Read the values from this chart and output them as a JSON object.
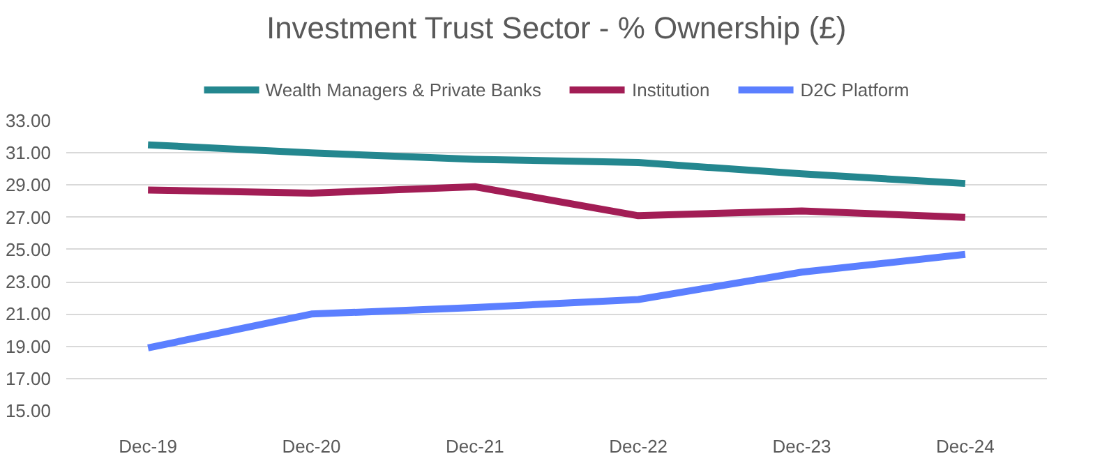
{
  "chart_data": {
    "type": "line",
    "title": "Investment Trust Sector - % Ownership (£)",
    "categories": [
      "Dec-19",
      "Dec-20",
      "Dec-21",
      "Dec-22",
      "Dec-23",
      "Dec-24"
    ],
    "series": [
      {
        "name": "Wealth Managers & Private Banks",
        "color": "#24878f",
        "values": [
          31.5,
          31.0,
          30.6,
          30.4,
          29.7,
          29.1
        ]
      },
      {
        "name": "Institution",
        "color": "#a21d55",
        "values": [
          28.7,
          28.5,
          28.9,
          27.1,
          27.4,
          27.0
        ]
      },
      {
        "name": "D2C Platform",
        "color": "#5b7fff",
        "values": [
          18.9,
          21.0,
          21.4,
          21.9,
          23.6,
          24.7
        ]
      }
    ],
    "ylim": [
      15,
      33
    ],
    "yticks": [
      {
        "value": 15,
        "label": "15.00"
      },
      {
        "value": 17,
        "label": "17.00"
      },
      {
        "value": 19,
        "label": "19.00"
      },
      {
        "value": 21,
        "label": "21.00"
      },
      {
        "value": 23,
        "label": "23.00"
      },
      {
        "value": 25,
        "label": "25.00"
      },
      {
        "value": 27,
        "label": "27.00"
      },
      {
        "value": 29,
        "label": "29.00"
      },
      {
        "value": 31,
        "label": "31.00"
      },
      {
        "value": 33,
        "label": "33.00"
      }
    ],
    "grid": "y",
    "legend": "top",
    "marker": "none",
    "line_style": "solid"
  }
}
